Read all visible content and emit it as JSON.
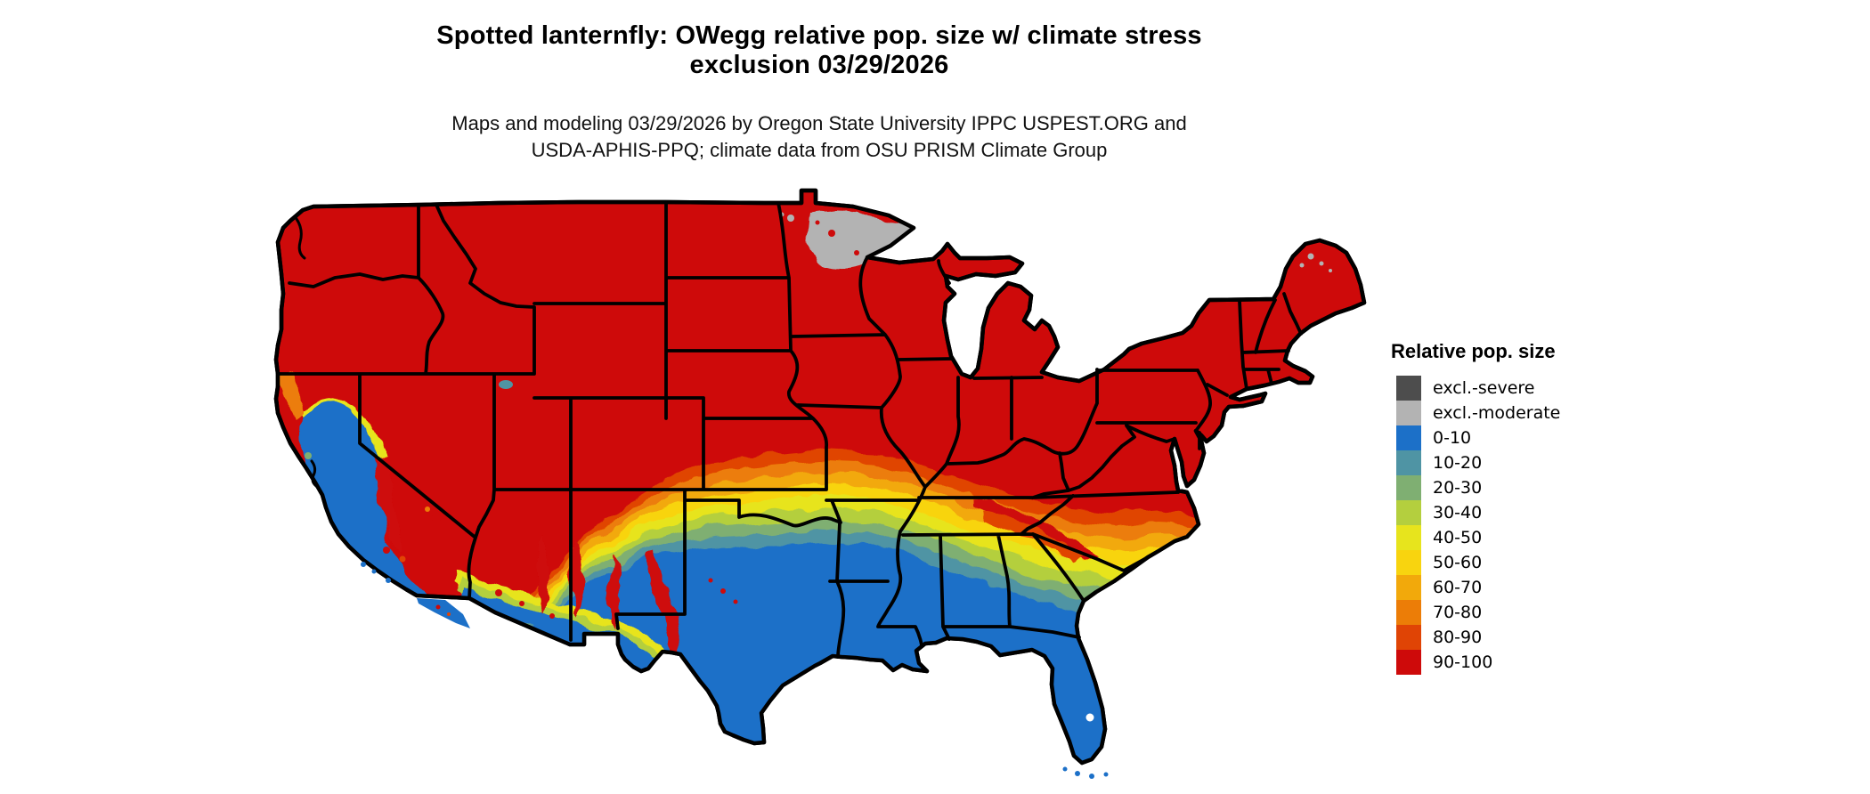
{
  "title": {
    "line1": "Spotted lanternfly: OWegg relative pop. size w/ climate stress",
    "line2": "exclusion 03/29/2026"
  },
  "subtitle": {
    "line1": "Maps and modeling 03/29/2026 by Oregon State University IPPC USPEST.ORG and",
    "line2": "USDA-APHIS-PPQ; climate data from OSU PRISM Climate Group"
  },
  "legend": {
    "title": "Relative pop. size",
    "items": [
      {
        "label": "excl.-severe",
        "color": "#4D4D4D"
      },
      {
        "label": "excl.-moderate",
        "color": "#B3B3B3"
      },
      {
        "label": "0-10",
        "color": "#1C70C8"
      },
      {
        "label": "10-20",
        "color": "#4F94A4"
      },
      {
        "label": "20-30",
        "color": "#7FAF72"
      },
      {
        "label": "30-40",
        "color": "#B4CF3E"
      },
      {
        "label": "40-50",
        "color": "#E7E41D"
      },
      {
        "label": "50-60",
        "color": "#F8D40F"
      },
      {
        "label": "60-70",
        "color": "#F2A90B"
      },
      {
        "label": "70-80",
        "color": "#EC7D07"
      },
      {
        "label": "80-90",
        "color": "#E04405"
      },
      {
        "label": "90-100",
        "color": "#CE0A0A"
      }
    ]
  },
  "map": {
    "type": "choropleth-raster",
    "region": "Contiguous United States",
    "border_color": "#000000",
    "water_color": "#FFFFFF",
    "background_color": "#FFFFFF",
    "dominant_class": "90-100"
  }
}
